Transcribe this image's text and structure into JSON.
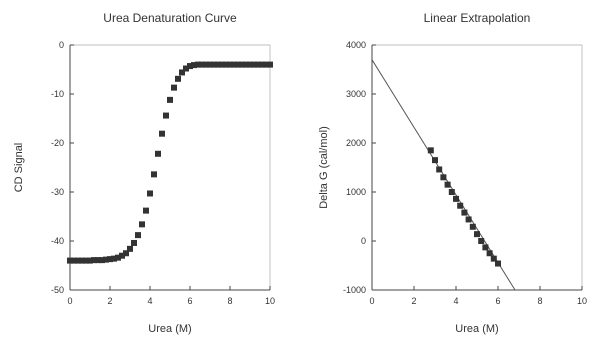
{
  "chart_data": [
    {
      "type": "scatter",
      "title": "Urea Denaturation Curve",
      "xlabel": "Urea (M)",
      "ylabel": "CD Signal",
      "xlim": [
        0,
        10
      ],
      "ylim": [
        -50,
        0
      ],
      "xticks": [
        "0",
        "2",
        "4",
        "6",
        "8",
        "10"
      ],
      "yticks": [
        "0",
        "-10",
        "-20",
        "-30",
        "-40",
        "-50"
      ],
      "marker_color": "#333333",
      "series": [
        {
          "x": [
            0.0,
            0.2,
            0.4,
            0.6,
            0.8,
            1.0,
            1.2,
            1.4,
            1.6,
            1.8,
            2.0,
            2.2,
            2.4,
            2.6,
            2.8,
            3.0,
            3.2,
            3.4,
            3.6,
            3.8,
            4.0,
            4.2,
            4.4,
            4.6,
            4.8,
            5.0,
            5.2,
            5.4,
            5.6,
            5.8,
            6.0,
            6.2,
            6.4,
            6.6,
            6.8,
            7.0,
            7.2,
            7.4,
            7.6,
            7.8,
            8.0,
            8.2,
            8.4,
            8.6,
            8.8,
            9.0,
            9.2,
            9.4,
            9.6,
            9.8,
            10.0
          ],
          "y": [
            -44.0,
            -44.0,
            -44.0,
            -44.0,
            -44.0,
            -44.0,
            -43.9,
            -43.9,
            -43.9,
            -43.8,
            -43.7,
            -43.6,
            -43.4,
            -43.0,
            -42.5,
            -41.6,
            -40.4,
            -38.8,
            -36.6,
            -33.8,
            -30.3,
            -26.4,
            -22.2,
            -18.1,
            -14.4,
            -11.2,
            -8.7,
            -6.9,
            -5.6,
            -4.8,
            -4.3,
            -4.1,
            -4.0,
            -4.0,
            -4.0,
            -4.0,
            -4.0,
            -4.0,
            -4.0,
            -4.0,
            -4.0,
            -4.0,
            -4.0,
            -4.0,
            -4.0,
            -4.0,
            -4.0,
            -4.0,
            -4.0,
            -4.0,
            -4.0
          ]
        }
      ]
    },
    {
      "type": "scatter",
      "title": "Linear Extrapolation",
      "xlabel": "Urea (M)",
      "ylabel": "Delta G (cal/mol)",
      "xlim": [
        0,
        10
      ],
      "ylim": [
        -1000,
        4000
      ],
      "xticks": [
        "0",
        "2",
        "4",
        "6",
        "8",
        "10"
      ],
      "yticks": [
        "4000",
        "3000",
        "2000",
        "1000",
        "0",
        "-1000"
      ],
      "marker_color": "#333333",
      "line": {
        "intercept": 3700,
        "slope": -690,
        "x_end": 6.8
      },
      "series": [
        {
          "x": [
            2.8,
            3.0,
            3.2,
            3.4,
            3.6,
            3.8,
            4.0,
            4.2,
            4.4,
            4.6,
            4.8,
            5.0,
            5.2,
            5.4,
            5.6,
            5.8,
            6.0
          ],
          "y": [
            1850,
            1650,
            1460,
            1300,
            1150,
            1000,
            860,
            720,
            580,
            440,
            290,
            140,
            0,
            -130,
            -250,
            -360,
            -460
          ]
        }
      ]
    }
  ]
}
